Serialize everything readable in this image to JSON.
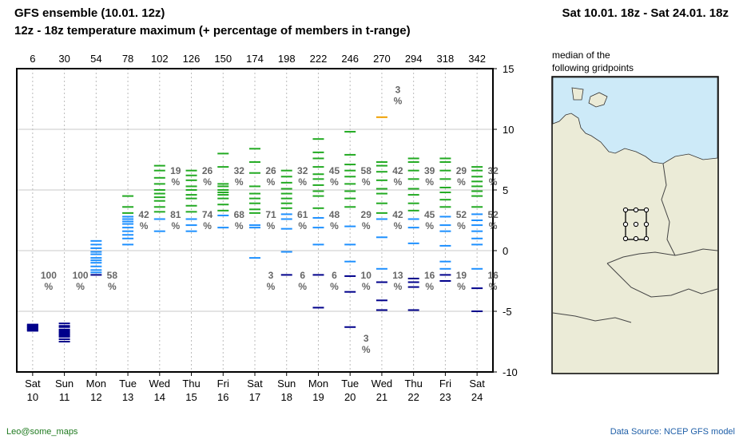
{
  "header": {
    "title": "GFS ensemble (10.01. 12z)",
    "subtitle": "12z - 18z temperature maximum (+ percentage of members in t-range)",
    "period": "Sat 10.01. 18z - Sat 24.01. 18z"
  },
  "map": {
    "caption_line1": "median of the",
    "caption_line2": "following gridpoints"
  },
  "footer": {
    "credit": "Leo@some_maps",
    "source": "Data Source: NCEP GFS model"
  },
  "colors": {
    "range_below_minus2": "#00008b",
    "range_minus2_to_3": "#1e90ff",
    "range_3_to_10": "#22aa22",
    "range_above_10": "#f0a000"
  },
  "chart_data": {
    "type": "scatter",
    "y_range": [
      -10,
      15
    ],
    "y_ticks": [
      15,
      10,
      5,
      0,
      -5,
      -10
    ],
    "grid": true,
    "lead_hours": [
      "6",
      "30",
      "54",
      "78",
      "102",
      "126",
      "150",
      "174",
      "198",
      "222",
      "246",
      "270",
      "294",
      "318",
      "342"
    ],
    "days": [
      {
        "wd": "Sat",
        "d": "10"
      },
      {
        "wd": "Sun",
        "d": "11"
      },
      {
        "wd": "Mon",
        "d": "12"
      },
      {
        "wd": "Tue",
        "d": "13"
      },
      {
        "wd": "Wed",
        "d": "14"
      },
      {
        "wd": "Thu",
        "d": "15"
      },
      {
        "wd": "Fri",
        "d": "16"
      },
      {
        "wd": "Sat",
        "d": "17"
      },
      {
        "wd": "Sun",
        "d": "18"
      },
      {
        "wd": "Mon",
        "d": "19"
      },
      {
        "wd": "Tue",
        "d": "20"
      },
      {
        "wd": "Wed",
        "d": "21"
      },
      {
        "wd": "Thu",
        "d": "22"
      },
      {
        "wd": "Fri",
        "d": "23"
      },
      {
        "wd": "Sat",
        "d": "24"
      }
    ],
    "columns": [
      {
        "ens": [
          -6.1,
          -6.2,
          -6.3,
          -6.4,
          -6.5,
          -6.6,
          -6.3,
          -6.2,
          -6.4,
          -6.5,
          -6.6,
          -6.1
        ],
        "labels": [
          {
            "p": "100",
            "at": "low"
          }
        ]
      },
      {
        "ens": [
          -6.0,
          -6.3,
          -6.5,
          -6.7,
          -6.9,
          -7.0,
          -7.1,
          -7.3,
          -7.5,
          -6.8,
          -6.6,
          -6.2
        ],
        "labels": [
          {
            "p": "100",
            "at": "low"
          }
        ]
      },
      {
        "ens": [
          0.8,
          0.5,
          0.2,
          -0.1,
          -0.3,
          -0.6,
          -0.8,
          -1.0,
          -1.3,
          -1.6,
          -1.8,
          -2.0
        ],
        "labels": [
          {
            "p": "58",
            "at": "low"
          }
        ]
      },
      {
        "ens": [
          4.5,
          3.6,
          3.1,
          2.8,
          2.6,
          2.4,
          2.2,
          1.9,
          1.6,
          1.3,
          1.0,
          0.5
        ],
        "labels": [
          {
            "p": "42",
            "at": "mid"
          }
        ]
      },
      {
        "ens": [
          7.0,
          6.6,
          6.0,
          5.5,
          5.0,
          4.7,
          4.4,
          4.1,
          3.6,
          3.2,
          2.6,
          1.6
        ],
        "labels": [
          {
            "p": "19",
            "at": "high"
          },
          {
            "p": "81",
            "at": "mid"
          }
        ]
      },
      {
        "ens": [
          6.6,
          6.2,
          5.8,
          5.3,
          5.0,
          4.6,
          4.3,
          3.7,
          3.2,
          2.6,
          2.1,
          1.6
        ],
        "labels": [
          {
            "p": "26",
            "at": "high"
          },
          {
            "p": "74",
            "at": "mid"
          }
        ]
      },
      {
        "ens": [
          8.0,
          6.9,
          5.5,
          5.3,
          5.0,
          4.8,
          4.6,
          4.3,
          3.8,
          3.3,
          2.9,
          1.9
        ],
        "labels": [
          {
            "p": "32",
            "at": "high"
          },
          {
            "p": "68",
            "at": "mid"
          }
        ]
      },
      {
        "ens": [
          8.4,
          7.3,
          6.4,
          5.3,
          4.7,
          4.3,
          3.9,
          3.4,
          3.1,
          2.1,
          1.9,
          -0.6
        ],
        "labels": [
          {
            "p": "26",
            "at": "high"
          },
          {
            "p": "71",
            "at": "mid"
          },
          {
            "p": "3",
            "at": "low"
          }
        ]
      },
      {
        "ens": [
          6.6,
          6.1,
          5.6,
          5.1,
          4.7,
          4.3,
          3.9,
          3.5,
          3.0,
          2.6,
          1.8,
          -0.1,
          -2.0
        ],
        "labels": [
          {
            "p": "32",
            "at": "high"
          },
          {
            "p": "61",
            "at": "mid"
          },
          {
            "p": "6",
            "at": "low"
          }
        ]
      },
      {
        "ens": [
          9.2,
          8.1,
          7.6,
          6.9,
          6.3,
          5.9,
          5.4,
          4.9,
          4.5,
          3.5,
          2.7,
          1.9,
          0.5,
          -2.0,
          -4.7
        ],
        "labels": [
          {
            "p": "45",
            "at": "high"
          },
          {
            "p": "48",
            "at": "mid"
          },
          {
            "p": "6",
            "at": "low"
          }
        ]
      },
      {
        "ens": [
          9.8,
          7.9,
          7.1,
          6.6,
          6.1,
          5.5,
          4.9,
          4.3,
          3.6,
          2.0,
          0.5,
          -0.9,
          -2.1,
          -3.4,
          -6.3
        ],
        "labels": [
          {
            "p": "58",
            "at": "high"
          },
          {
            "p": "29",
            "at": "mid"
          },
          {
            "p": "10",
            "at": "low"
          },
          {
            "p": "3",
            "at": "bottom"
          }
        ]
      },
      {
        "ens": [
          11.0,
          7.3,
          7.0,
          6.5,
          5.8,
          5.1,
          4.7,
          3.9,
          3.1,
          2.6,
          1.1,
          -1.5,
          -2.6,
          -4.1,
          -4.9
        ],
        "labels": [
          {
            "p": "3",
            "at": "top"
          },
          {
            "p": "42",
            "at": "high"
          },
          {
            "p": "42",
            "at": "mid"
          },
          {
            "p": "13",
            "at": "low"
          }
        ]
      },
      {
        "ens": [
          7.6,
          7.3,
          6.6,
          5.9,
          5.1,
          4.6,
          3.9,
          3.3,
          2.6,
          1.9,
          0.6,
          -2.3,
          -2.6,
          -3.0,
          -4.9
        ],
        "labels": [
          {
            "p": "39",
            "at": "high"
          },
          {
            "p": "45",
            "at": "mid"
          },
          {
            "p": "16",
            "at": "low"
          }
        ]
      },
      {
        "ens": [
          7.6,
          7.3,
          6.6,
          5.9,
          5.2,
          4.8,
          4.2,
          3.6,
          2.8,
          2.1,
          1.6,
          0.4,
          -0.9,
          -1.5,
          -2.0,
          -2.5
        ],
        "labels": [
          {
            "p": "29",
            "at": "high"
          },
          {
            "p": "52",
            "at": "mid"
          },
          {
            "p": "19",
            "at": "low"
          }
        ]
      },
      {
        "ens": [
          6.9,
          6.6,
          6.1,
          5.7,
          5.3,
          4.9,
          4.5,
          3.6,
          3.0,
          2.5,
          2.1,
          1.6,
          1.0,
          0.5,
          -1.5,
          -3.1,
          -5.0
        ],
        "labels": [
          {
            "p": "32",
            "at": "high"
          },
          {
            "p": "52",
            "at": "mid"
          },
          {
            "p": "16",
            "at": "low"
          }
        ]
      }
    ]
  }
}
